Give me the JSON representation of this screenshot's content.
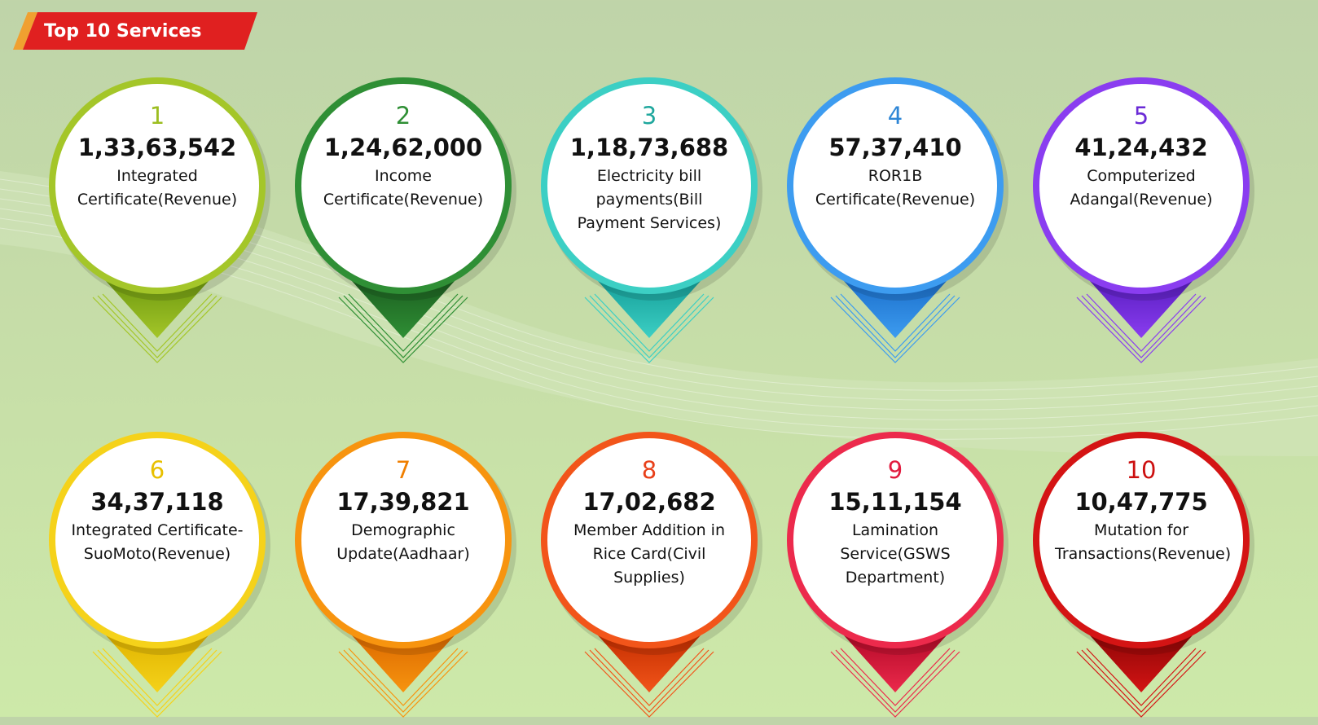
{
  "header": {
    "title": "Top 10 Services"
  },
  "services": [
    {
      "rank": "1",
      "count": "1,33,63,542",
      "name": "Integrated Certificate(Revenue)",
      "color": "#a4c629",
      "dark": "#6f9a10",
      "rank_color": "#9cbe20"
    },
    {
      "rank": "2",
      "count": "1,24,62,000",
      "name": "Income Certificate(Revenue)",
      "color": "#2f8f35",
      "dark": "#1c5f20",
      "rank_color": "#2f8f35"
    },
    {
      "rank": "3",
      "count": "1,18,73,688",
      "name": "Electricity bill payments(Bill Payment Services)",
      "color": "#3ccfc4",
      "dark": "#16a09a",
      "rank_color": "#1fa79d"
    },
    {
      "rank": "4",
      "count": "57,37,410",
      "name": "ROR1B Certificate(Revenue)",
      "color": "#3d9cf0",
      "dark": "#1b6fcb",
      "rank_color": "#2e86d6"
    },
    {
      "rank": "5",
      "count": "41,24,432",
      "name": "Computerized Adangal(Revenue)",
      "color": "#8a3df0",
      "dark": "#5a1ec1",
      "rank_color": "#6a2ad6"
    },
    {
      "rank": "6",
      "count": "34,37,118",
      "name": "Integrated Certificate-SuoMoto(Revenue)",
      "color": "#f5d21a",
      "dark": "#e0b400",
      "rank_color": "#e8c000"
    },
    {
      "rank": "7",
      "count": "17,39,821",
      "name": "Demographic Update(Aadhaar)",
      "color": "#f7940f",
      "dark": "#dc6a00",
      "rank_color": "#f07f00"
    },
    {
      "rank": "8",
      "count": "17,02,682",
      "name": "Member Addition in Rice Card(Civil Supplies)",
      "color": "#f2551a",
      "dark": "#c42e00",
      "rank_color": "#e8401a"
    },
    {
      "rank": "9",
      "count": "15,11,154",
      "name": "Lamination Service(GSWS Department)",
      "color": "#ec2a4c",
      "dark": "#b40a28",
      "rank_color": "#e21b3f"
    },
    {
      "rank": "10",
      "count": "10,47,775",
      "name": "Mutation for Transactions(Revenue)",
      "color": "#d41414",
      "dark": "#8e0606",
      "rank_color": "#cc1010"
    }
  ]
}
